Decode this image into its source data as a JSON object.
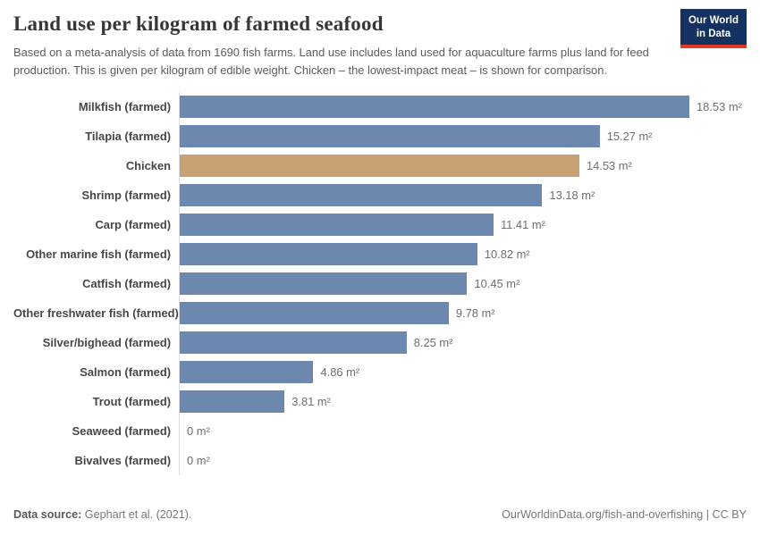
{
  "header": {
    "title": "Land use per kilogram of farmed seafood",
    "subtitle": "Based on a meta-analysis of data from 1690 fish farms. Land use includes land used for aquaculture farms plus land for feed production. This is given per kilogram of edible weight. Chicken – the lowest-impact meat – is shown for comparison.",
    "logo": {
      "line1": "Our World",
      "line2": "in Data"
    }
  },
  "chart_data": {
    "type": "bar",
    "orientation": "horizontal",
    "title": "Land use per kilogram of farmed seafood",
    "unit": "m²",
    "categories": [
      "Milkfish (farmed)",
      "Tilapia (farmed)",
      "Chicken",
      "Shrimp (farmed)",
      "Carp (farmed)",
      "Other marine fish (farmed)",
      "Catfish (farmed)",
      "Other freshwater fish (farmed)",
      "Silver/bighead (farmed)",
      "Salmon (farmed)",
      "Trout (farmed)",
      "Seaweed (farmed)",
      "Bivalves (farmed)"
    ],
    "values": [
      18.53,
      15.27,
      14.53,
      13.18,
      11.41,
      10.82,
      10.45,
      9.78,
      8.25,
      4.86,
      3.81,
      0,
      0
    ],
    "value_labels": [
      "18.53 m²",
      "15.27 m²",
      "14.53 m²",
      "13.18 m²",
      "11.41 m²",
      "10.82 m²",
      "10.45 m²",
      "9.78 m²",
      "8.25 m²",
      "4.86 m²",
      "3.81 m²",
      "0 m²",
      "0 m²"
    ],
    "xlim": [
      0,
      18.53
    ],
    "highlight_category": "Chicken",
    "colors": {
      "bar": "#6d88ae",
      "highlight": "#c8a275"
    },
    "grid": false,
    "legend": "none"
  },
  "footer": {
    "source_label": "Data source:",
    "source_value": " Gephart et al. (2021).",
    "right_text": "OurWorldinData.org/fish-and-overfishing | CC BY"
  }
}
